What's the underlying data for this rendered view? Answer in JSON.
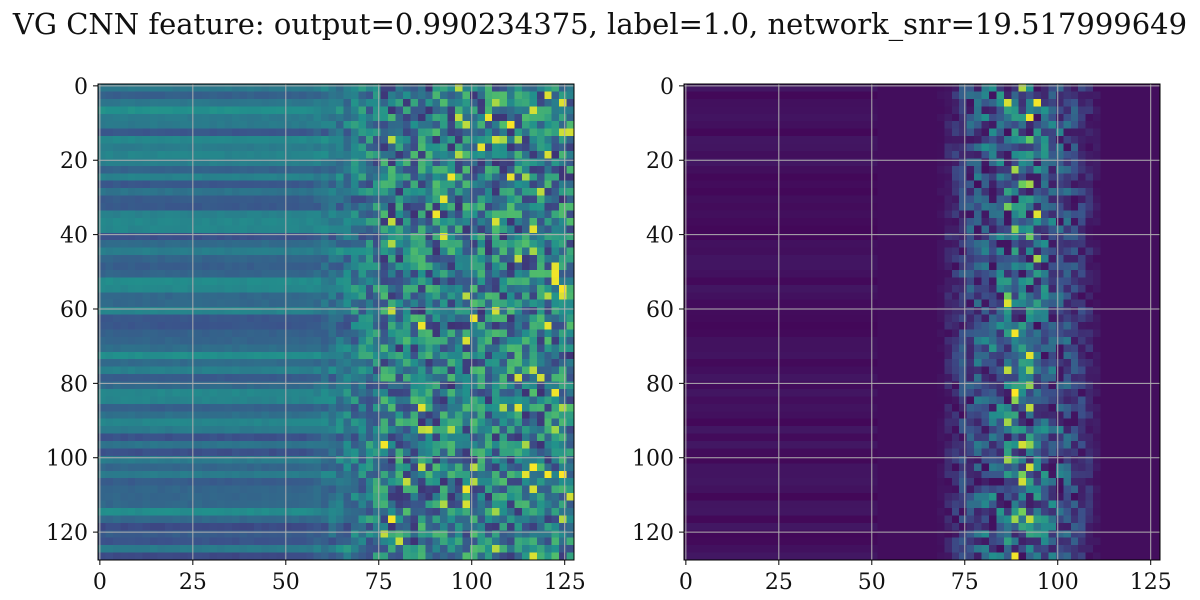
{
  "title": "VG CNN feature: output=0.990234375, label=1.0, network_snr=19.517999649",
  "colormap": [
    "#440154",
    "#3b528b",
    "#21918c",
    "#5ec962",
    "#fde725"
  ],
  "chart_data": [
    {
      "type": "heatmap",
      "panel": "left",
      "xlim": [
        0,
        127
      ],
      "ylim": [
        127,
        0
      ],
      "xticks": [
        "0",
        "25",
        "50",
        "75",
        "100",
        "125"
      ],
      "yticks": [
        "0",
        "20",
        "40",
        "60",
        "80",
        "100",
        "120"
      ],
      "grid": true,
      "xlabel": "",
      "ylabel": ""
    },
    {
      "type": "heatmap",
      "panel": "right",
      "xlim": [
        0,
        127
      ],
      "ylim": [
        127,
        0
      ],
      "xticks": [
        "0",
        "25",
        "50",
        "75",
        "100",
        "125"
      ],
      "yticks": [
        "0",
        "20",
        "40",
        "60",
        "80",
        "100",
        "120"
      ],
      "grid": true,
      "xlabel": "",
      "ylabel": ""
    }
  ]
}
